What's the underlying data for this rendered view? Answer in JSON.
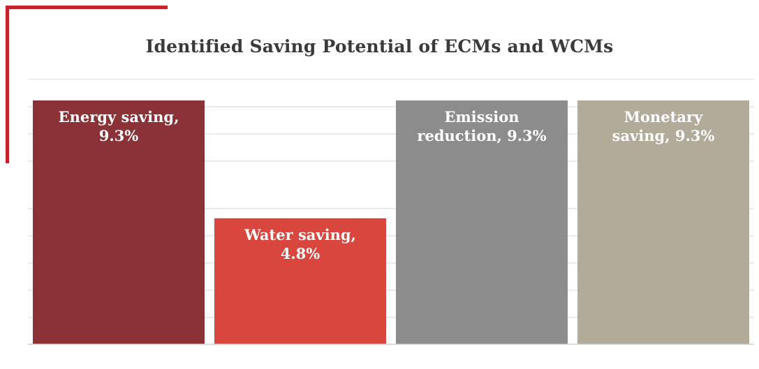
{
  "chart_data": {
    "type": "bar",
    "title": "Identified Saving Potential of ECMs and WCMs",
    "xlabel": "",
    "ylabel": "",
    "categories": [
      "Energy saving",
      "Water saving",
      "Emission reduction",
      "Monetary saving"
    ],
    "values": [
      9.3,
      4.8,
      9.3,
      9.3
    ],
    "unit": "%",
    "labels": [
      [
        "Energy saving,",
        "9.3%"
      ],
      [
        "Water saving,",
        "4.8%"
      ],
      [
        "Emission",
        "reduction, 9.3%"
      ],
      [
        "Monetary",
        "saving, 9.3%"
      ]
    ],
    "colors": [
      "#8b3237",
      "#d9463d",
      "#8c8c8c",
      "#b3ab9a"
    ],
    "ylim": [
      0,
      9.3
    ],
    "grid": true,
    "legend": "none"
  },
  "decoration": {
    "accent_color": "#c8202a"
  }
}
